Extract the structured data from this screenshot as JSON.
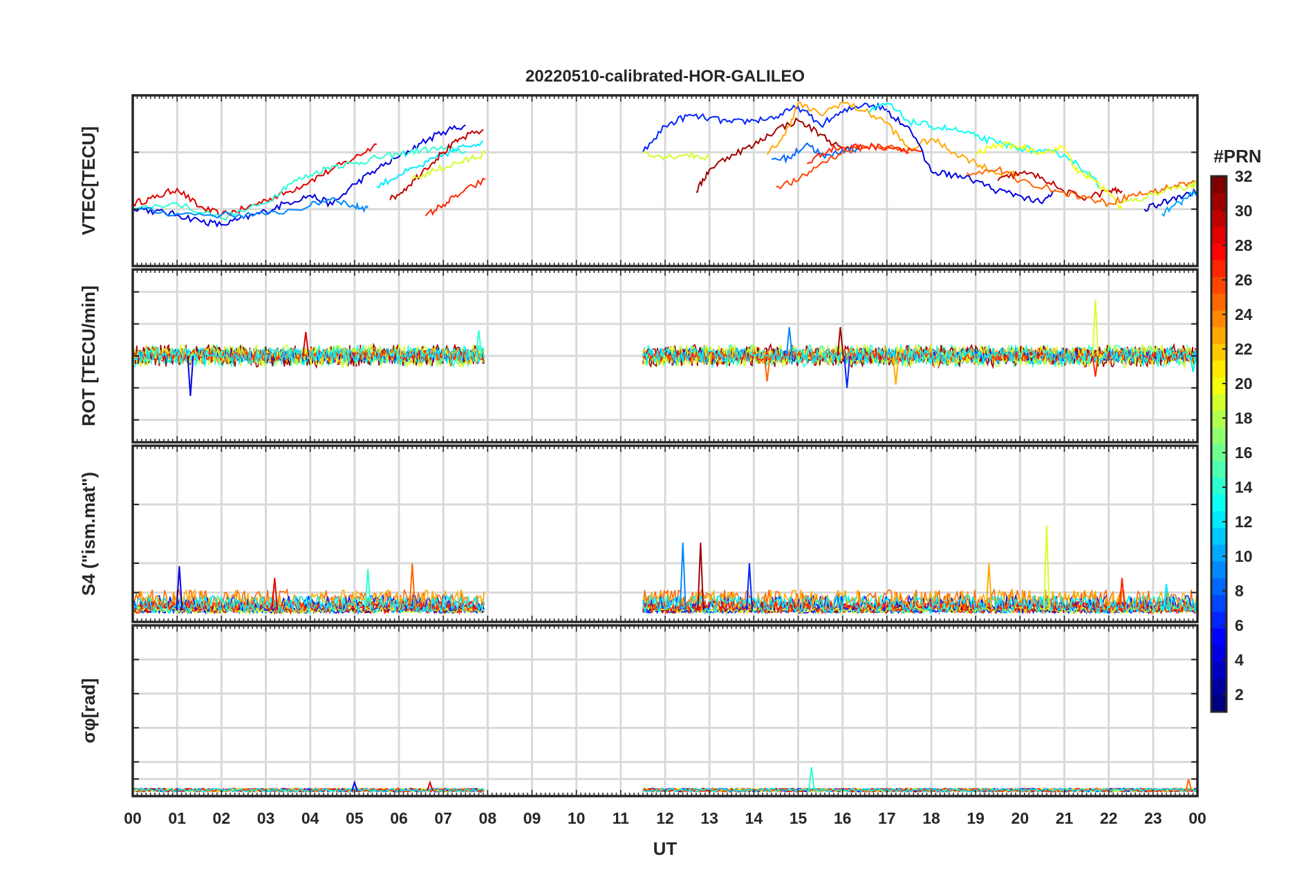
{
  "chart_data": {
    "title": "20220510-calibrated-HOR-GALILEO",
    "type": "line",
    "xlabel": "UT",
    "xlim": [
      0,
      24
    ],
    "x_ticks": [
      0,
      1,
      2,
      3,
      4,
      5,
      6,
      7,
      8,
      9,
      10,
      11,
      12,
      13,
      14,
      15,
      16,
      17,
      18,
      19,
      20,
      21,
      22,
      23,
      24
    ],
    "x_tick_labels": [
      "00",
      "01",
      "02",
      "03",
      "04",
      "05",
      "06",
      "07",
      "08",
      "09",
      "10",
      "11",
      "12",
      "13",
      "14",
      "15",
      "16",
      "17",
      "18",
      "19",
      "20",
      "21",
      "22",
      "23",
      "00"
    ],
    "data_gap_hours": [
      8.0,
      11.5
    ],
    "panels": [
      {
        "id": "vtec",
        "ylabel": "VTEC[TECU]",
        "ylim": [
          5,
          20
        ],
        "y_ticks": [
          5,
          10,
          15,
          20
        ],
        "series": [
          {
            "prn": 29,
            "x": [
              0,
              0.5,
              1,
              1.5,
              2,
              2.5,
              3,
              3.5,
              4,
              4.5,
              5,
              5.5
            ],
            "y": [
              10.5,
              11,
              11.8,
              10.2,
              9.5,
              10,
              10.8,
              11.5,
              12.5,
              13.5,
              14.5,
              15.7
            ]
          },
          {
            "prn": 4,
            "x": [
              0,
              0.5,
              1,
              1.5,
              2,
              2.5,
              3,
              3.5,
              4,
              4.5,
              5,
              5.5,
              6,
              6.5,
              7,
              7.5
            ],
            "y": [
              10.2,
              9.8,
              9.5,
              9,
              8.6,
              9.2,
              9.8,
              10.6,
              11.2,
              10.4,
              12.2,
              13.5,
              14.6,
              15.8,
              16.8,
              17.4
            ]
          },
          {
            "prn": 14,
            "x": [
              0,
              1,
              2,
              3,
              3.5,
              4,
              4.5,
              5,
              5.5,
              6,
              6.5,
              7,
              7.5
            ],
            "y": [
              10,
              10.5,
              9.2,
              10.5,
              12.2,
              13,
              13.8,
              14,
              14.5,
              14.8,
              15.2,
              15.3,
              15.1
            ]
          },
          {
            "prn": 9,
            "x": [
              0,
              1,
              2,
              3,
              4,
              4.5,
              5,
              5.3
            ],
            "y": [
              10,
              9.6,
              9.5,
              9.5,
              10.3,
              11,
              10.2,
              10.1
            ]
          },
          {
            "prn": 12,
            "x": [
              5.5,
              6,
              6.5,
              7,
              7.5,
              7.9
            ],
            "y": [
              12,
              13,
              13.8,
              14.8,
              15.5,
              16
            ]
          },
          {
            "prn": 30,
            "x": [
              5.8,
              6.2,
              6.6,
              7,
              7.4,
              7.9
            ],
            "y": [
              10.8,
              12,
              13.6,
              15,
              16.2,
              17
            ]
          },
          {
            "prn": 19,
            "x": [
              6.3,
              6.8,
              7.2,
              7.6,
              7.95
            ],
            "y": [
              12.6,
              13.4,
              13.9,
              14.4,
              14.9
            ]
          },
          {
            "prn": 27,
            "x": [
              6.6,
              7,
              7.4,
              7.95
            ],
            "y": [
              9.4,
              10.4,
              11.4,
              12.6
            ]
          },
          {
            "prn": 6,
            "x": [
              11.5,
              12,
              12.5,
              13,
              13.5,
              14,
              14.5,
              15,
              15.5,
              16,
              16.5,
              17
            ],
            "y": [
              15,
              17.3,
              18.2,
              18,
              17.6,
              17.8,
              18.1,
              19,
              17.4,
              18.5,
              19.3,
              18.8
            ]
          },
          {
            "prn": 19,
            "x": [
              11.5,
              12,
              12.5,
              13
            ],
            "y": [
              15,
              14.6,
              14.8,
              14.5
            ]
          },
          {
            "prn": 31,
            "x": [
              12.7,
              13,
              13.5,
              14,
              14.5,
              15,
              15.5,
              16
            ],
            "y": [
              11.5,
              13.5,
              14.8,
              15.6,
              17,
              17.8,
              16.6,
              15.2
            ]
          },
          {
            "prn": 23,
            "x": [
              14.3,
              14.7,
              15,
              15.5,
              16,
              16.5,
              17,
              17.5,
              18,
              18.5,
              19,
              19.5,
              20
            ],
            "y": [
              14.8,
              16.5,
              19.3,
              18.3,
              19.4,
              18.6,
              17.6,
              15.2,
              16.2,
              15,
              14.1,
              13.1,
              13
            ]
          },
          {
            "prn": 8,
            "x": [
              14.4,
              14.8,
              15.2,
              15.6,
              16,
              16.4
            ],
            "y": [
              14.4,
              14.5,
              15.8,
              14.5,
              15.2,
              15.3
            ]
          },
          {
            "prn": 26,
            "x": [
              14.5,
              15,
              15.5,
              16,
              16.5,
              17,
              17.5
            ],
            "y": [
              12,
              12.5,
              14,
              15,
              15.5,
              15.5,
              15
            ]
          },
          {
            "prn": 27,
            "x": [
              15.2,
              15.7,
              16.2,
              16.7,
              17.2,
              17.8
            ],
            "y": [
              14,
              15.3,
              15.5,
              15.5,
              15.4,
              15.1
            ]
          },
          {
            "prn": 13,
            "x": [
              16.6,
              17,
              17.5,
              18,
              18.5,
              19,
              19.5,
              20,
              20.5,
              21,
              21.5,
              21.8
            ],
            "y": [
              18.5,
              19.3,
              17.7,
              17.3,
              17,
              16.4,
              15.8,
              15.4,
              15,
              14.8,
              13.3,
              12
            ]
          },
          {
            "prn": 4,
            "x": [
              17,
              17.5,
              18,
              18.5,
              19,
              19.5,
              20,
              20.5,
              20.8
            ],
            "y": [
              18.6,
              17.2,
              13.3,
              13,
              12.5,
              11.6,
              11.2,
              10.5,
              11.7
            ]
          },
          {
            "prn": 30,
            "x": [
              19.5,
              20,
              20.5,
              21,
              21.5,
              22,
              22.3
            ],
            "y": [
              12.5,
              13.2,
              12.8,
              11.5,
              11,
              11.6,
              11.6
            ]
          },
          {
            "prn": 20,
            "x": [
              19,
              19.5,
              20,
              20.5,
              21,
              21.3,
              21.6,
              22,
              22.3
            ],
            "y": [
              14.8,
              15.7,
              15.5,
              15,
              15.4,
              13.2,
              12.8,
              11.4,
              10
            ]
          },
          {
            "prn": 25,
            "x": [
              18.8,
              19.5,
              20,
              21,
              21.5,
              22,
              22.5,
              23,
              23.5,
              24
            ],
            "y": [
              13.2,
              13.5,
              12.5,
              11.5,
              11,
              10.5,
              11.2,
              11.5,
              12.1,
              12.4
            ]
          },
          {
            "prn": 19,
            "x": [
              22.3,
              22.8,
              23.3,
              23.8,
              24
            ],
            "y": [
              10.5,
              11,
              11.8,
              12,
              12.2
            ]
          },
          {
            "prn": 3,
            "x": [
              22.8,
              23.2,
              23.6,
              24
            ],
            "y": [
              10,
              10.5,
              11.2,
              11.5
            ]
          },
          {
            "prn": 10,
            "x": [
              23.2,
              23.6,
              24
            ],
            "y": [
              9.6,
              10.6,
              11.5
            ]
          }
        ]
      },
      {
        "id": "rot",
        "ylabel": "ROT [TECU/min]",
        "ylim": [
          -5.4,
          5.4
        ],
        "y_ticks": [
          -4,
          -2,
          0,
          2,
          4
        ],
        "band_segments": [
          [
            0,
            7.95
          ],
          [
            11.5,
            24
          ]
        ],
        "spikes": [
          {
            "x": 1.3,
            "y": -2.5
          },
          {
            "x": 3.9,
            "y": 1.5
          },
          {
            "x": 7.8,
            "y": 1.6
          },
          {
            "x": 14.3,
            "y": -1.6
          },
          {
            "x": 14.8,
            "y": 1.8
          },
          {
            "x": 15.95,
            "y": 1.8
          },
          {
            "x": 16.1,
            "y": -2
          },
          {
            "x": 17.2,
            "y": -1.8
          },
          {
            "x": 21.7,
            "y": 3.5
          },
          {
            "x": 21.7,
            "y": -1.3
          },
          {
            "x": 23.9,
            "y": -1
          }
        ]
      },
      {
        "id": "s4",
        "ylabel": "S4 (\"ism.mat\")",
        "ylim": [
          0,
          0.6
        ],
        "y_ticks": [
          0,
          0.1,
          0.2,
          0.4
        ],
        "band_segments": [
          [
            0,
            7.95
          ],
          [
            11.5,
            24
          ]
        ],
        "peaks": [
          {
            "x": 1.05,
            "y": 0.19
          },
          {
            "x": 3.2,
            "y": 0.15
          },
          {
            "x": 5.3,
            "y": 0.18
          },
          {
            "x": 6.3,
            "y": 0.2
          },
          {
            "x": 12.4,
            "y": 0.27
          },
          {
            "x": 12.8,
            "y": 0.27
          },
          {
            "x": 13.9,
            "y": 0.2
          },
          {
            "x": 19.3,
            "y": 0.2
          },
          {
            "x": 20.6,
            "y": 0.33
          },
          {
            "x": 22.3,
            "y": 0.15
          },
          {
            "x": 23.3,
            "y": 0.13
          }
        ]
      },
      {
        "id": "sigma_phi",
        "ylabel": "σφ[rad]",
        "ylim": [
          0,
          1
        ],
        "y_ticks": [
          0,
          0.1,
          0.2,
          0.4,
          0.6,
          0.8
        ],
        "band_segments": [
          [
            0,
            7.95
          ],
          [
            11.5,
            24
          ]
        ],
        "peaks": [
          {
            "x": 5.0,
            "y": 0.08
          },
          {
            "x": 6.7,
            "y": 0.08
          },
          {
            "x": 15.3,
            "y": 0.17
          },
          {
            "x": 23.8,
            "y": 0.1
          }
        ]
      }
    ],
    "colorbar": {
      "label": "#PRN",
      "range": [
        1,
        32
      ],
      "ticks": [
        2,
        4,
        6,
        8,
        10,
        12,
        14,
        16,
        18,
        20,
        22,
        24,
        26,
        28,
        30,
        32
      ],
      "colormap": "jet"
    }
  }
}
